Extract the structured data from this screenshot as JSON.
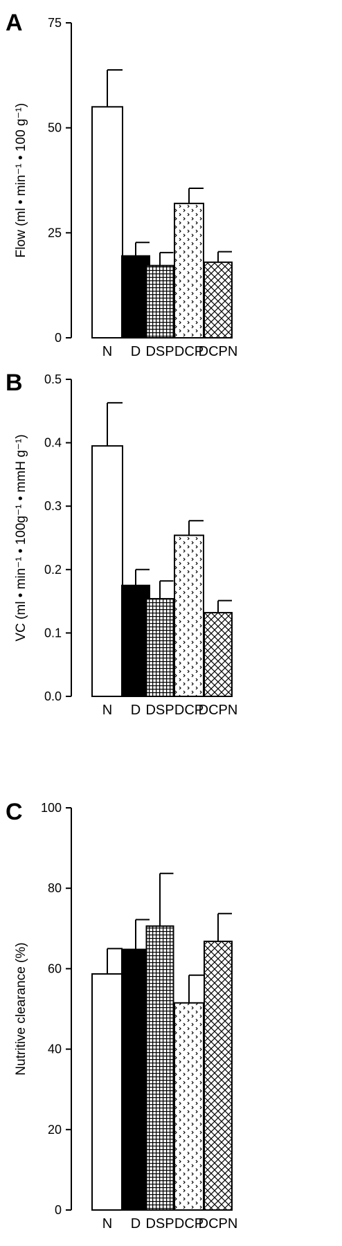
{
  "figure": {
    "panels": [
      "A",
      "B",
      "C"
    ]
  },
  "patterns": {
    "N": "blank",
    "D": "solid",
    "DSP": "square-grid",
    "DCP": "dotted-chevron",
    "DCPN": "diagonal-crosshatch"
  },
  "colors": {
    "fill_solid": "#000000",
    "fill_blank": "#ffffff",
    "stroke": "#000000"
  },
  "chart_data": [
    {
      "type": "bar",
      "panel": "A",
      "categories": [
        "N",
        "D",
        "DSP",
        "DCP",
        "DCPN"
      ],
      "values": [
        55,
        19.5,
        17.2,
        32,
        18
      ],
      "errors": [
        8.8,
        3.2,
        3.1,
        3.6,
        2.5
      ],
      "ylabel": "Flow (ml • min⁻¹ • 100 g⁻¹)",
      "ylim": [
        0,
        75
      ],
      "yticks": [
        0,
        25,
        50,
        75
      ],
      "ytick_labels": [
        "0",
        "25",
        "50",
        "75"
      ],
      "grid": false
    },
    {
      "type": "bar",
      "panel": "B",
      "categories": [
        "N",
        "D",
        "DSP",
        "DCP",
        "DCPN"
      ],
      "values": [
        0.395,
        0.175,
        0.154,
        0.254,
        0.132
      ],
      "errors": [
        0.068,
        0.025,
        0.028,
        0.023,
        0.019
      ],
      "ylabel": "VC (ml • min⁻¹ • 100g⁻¹ • mmH g⁻¹)",
      "ylim": [
        0,
        0.5
      ],
      "yticks": [
        0,
        0.1,
        0.2,
        0.3,
        0.4,
        0.5
      ],
      "ytick_labels": [
        "0.0",
        "0.1",
        "0.2",
        "0.3",
        "0.4",
        "0.5"
      ],
      "grid": false
    },
    {
      "type": "bar",
      "panel": "C",
      "categories": [
        "N",
        "D",
        "DSP",
        "DCP",
        "DCPN"
      ],
      "values": [
        58.7,
        64.8,
        70.6,
        51.5,
        66.8
      ],
      "errors": [
        6.3,
        7.4,
        13.1,
        6.9,
        6.9
      ],
      "ylabel": "Nutritive clearance (%)",
      "ylim": [
        0,
        100
      ],
      "yticks": [
        0,
        20,
        40,
        60,
        80,
        100
      ],
      "ytick_labels": [
        "0",
        "20",
        "40",
        "60",
        "80",
        "100"
      ],
      "grid": false
    }
  ]
}
